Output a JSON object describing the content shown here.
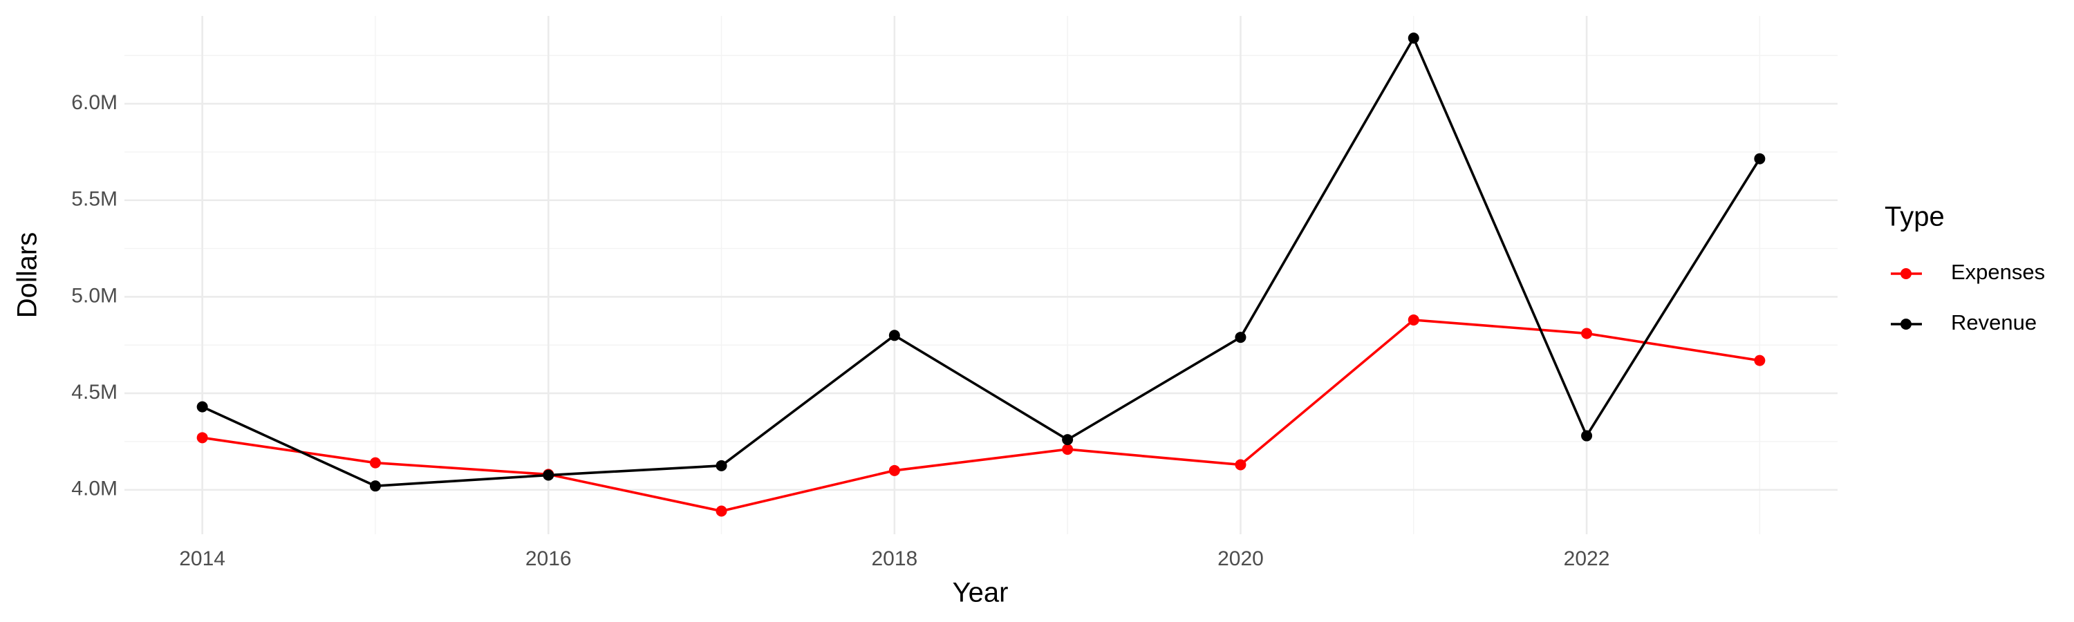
{
  "chart_data": {
    "type": "line",
    "x_label": "Year",
    "y_label": "Dollars",
    "legend_title": "Type",
    "legend_position": "right",
    "grid": true,
    "x": [
      2014,
      2015,
      2016,
      2017,
      2018,
      2019,
      2020,
      2021,
      2022,
      2023
    ],
    "series": [
      {
        "name": "Expenses",
        "color": "#ff0000",
        "values": [
          4270000,
          4140000,
          4080000,
          3890000,
          4100000,
          4210000,
          4130000,
          4880000,
          4810000,
          4670000
        ]
      },
      {
        "name": "Revenue",
        "color": "#000000",
        "values": [
          4430000,
          4020000,
          4076000,
          4125000,
          4800000,
          4260000,
          4790000,
          6340000,
          4280000,
          5715000
        ]
      }
    ],
    "xlim": [
      2013.55,
      2023.45
    ],
    "xticks": [
      2014,
      2016,
      2018,
      2020,
      2022
    ],
    "ylim": [
      3770000,
      6455000
    ],
    "yticks": [
      {
        "value": 4000000,
        "label": "4.0M"
      },
      {
        "value": 4500000,
        "label": "4.5M"
      },
      {
        "value": 5000000,
        "label": "5.0M"
      },
      {
        "value": 5500000,
        "label": "5.5M"
      },
      {
        "value": 6000000,
        "label": "6.0M"
      }
    ]
  }
}
